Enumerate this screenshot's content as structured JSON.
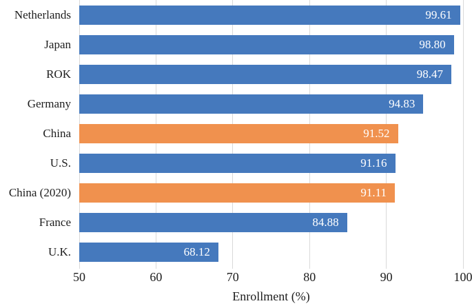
{
  "chart_data": {
    "type": "bar",
    "orientation": "horizontal",
    "title": "",
    "xlabel": "Enrollment (%)",
    "ylabel": "",
    "xlim": [
      50,
      100
    ],
    "xticks": [
      50,
      60,
      70,
      80,
      90,
      100
    ],
    "grid": true,
    "categories": [
      "Netherlands",
      "Japan",
      "ROK",
      "Germany",
      "China",
      "U.S.",
      "China (2020)",
      "France",
      "U.K."
    ],
    "values": [
      99.61,
      98.8,
      98.47,
      94.83,
      91.52,
      91.16,
      91.11,
      84.88,
      68.12
    ],
    "value_labels": [
      "99.61",
      "98.80",
      "98.47",
      "94.83",
      "91.52",
      "91.16",
      "91.11",
      "84.88",
      "68.12"
    ],
    "bar_colors": [
      "#4579BD",
      "#4579BD",
      "#4579BD",
      "#4579BD",
      "#F0914E",
      "#4579BD",
      "#F0914E",
      "#4579BD",
      "#4579BD"
    ],
    "highlighted_categories": [
      "China",
      "China (2020)"
    ],
    "colors": {
      "default_bar": "#4579BD",
      "highlight_bar": "#F0914E",
      "gridline": "#d9d9d9",
      "axis_text": "#1d1d1d",
      "value_label_text": "#ffffff"
    }
  }
}
